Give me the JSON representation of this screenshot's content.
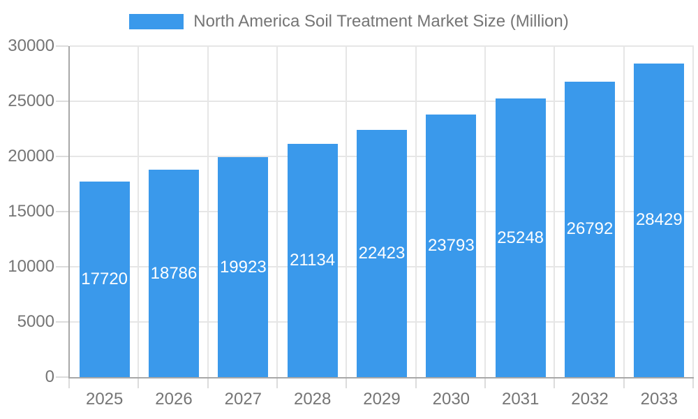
{
  "chart_data": {
    "type": "bar",
    "title": "North America Soil Treatment Market Size (Million)",
    "categories": [
      "2025",
      "2026",
      "2027",
      "2028",
      "2029",
      "2030",
      "2031",
      "2032",
      "2033"
    ],
    "values": [
      17720,
      18786,
      19923,
      21134,
      22423,
      23793,
      25248,
      26792,
      28429
    ],
    "xlabel": "",
    "ylabel": "",
    "ylim": [
      0,
      30000
    ],
    "ytick_step": 5000,
    "ytick_labels": [
      "0",
      "5000",
      "10000",
      "15000",
      "20000",
      "25000",
      "30000"
    ],
    "grid": true,
    "legend_position": "top",
    "colors": {
      "bar": "#3a99eb",
      "bar_value_text": "#ffffff",
      "axis_text": "#757575",
      "legend_text": "#757575",
      "gridline": "#e6e6e6",
      "tick": "#dcdcdc",
      "axis_line": "#a8a8a8",
      "background": "#ffffff"
    }
  }
}
